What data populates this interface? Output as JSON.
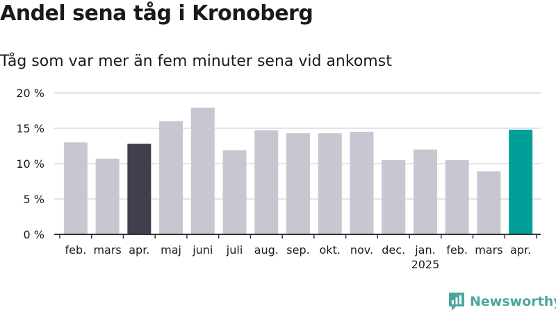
{
  "colors": {
    "bar_default": "#c8c6d0",
    "bar_previous_year": "#403f4c",
    "bar_latest": "#00a098",
    "grid": "#dcdcdc",
    "axis": "#333333",
    "brand": "#4aa79d"
  },
  "brand": {
    "name": "Newsworthy",
    "icon": "newsworthy-logo-icon"
  },
  "chart_data": {
    "type": "bar",
    "title": "Andel sena tåg i Kronoberg",
    "subtitle": "Tåg som var mer än fem minuter sena vid ankomst",
    "categories": [
      "feb.",
      "mars",
      "apr.",
      "maj",
      "juni",
      "juli",
      "aug.",
      "sep.",
      "okt.",
      "nov.",
      "dec.",
      "jan.",
      "feb.",
      "mars",
      "apr."
    ],
    "year_label": {
      "text": "2025",
      "category_index": 11
    },
    "values": [
      13.0,
      10.7,
      12.8,
      16.0,
      17.9,
      11.9,
      14.7,
      14.3,
      14.3,
      14.5,
      10.5,
      12.0,
      10.5,
      8.9,
      14.8
    ],
    "highlight": {
      "previous_year_index": 2,
      "latest_index": 14
    },
    "y_ticks": [
      0,
      5,
      10,
      15,
      20
    ],
    "y_tick_labels": [
      "0 %",
      "5 %",
      "10 %",
      "15 %",
      "20 %"
    ],
    "ylim": [
      0,
      20
    ],
    "xlabel": "",
    "ylabel": "",
    "grid": true,
    "legend": false
  }
}
